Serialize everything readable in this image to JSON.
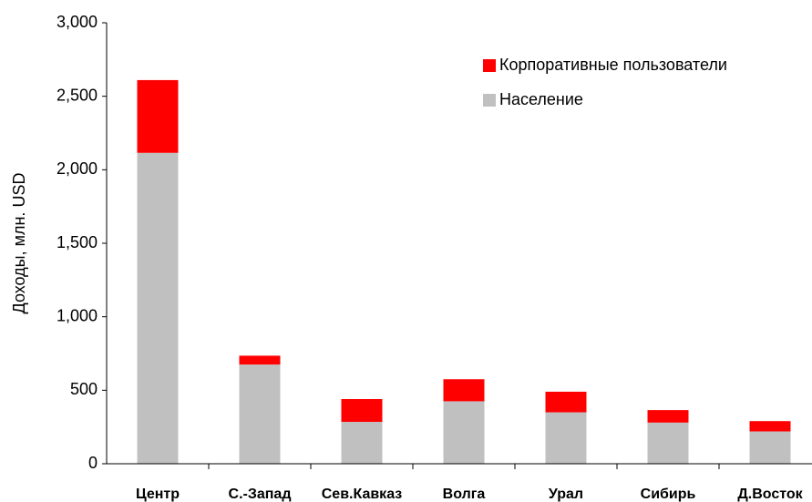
{
  "chart_data": {
    "type": "stacked_bar",
    "y_label": "Доходы, млн. USD",
    "categories": [
      "Центр",
      "С.-Запад",
      "Сев.Кавказ",
      "Волга",
      "Урал",
      "Сибирь",
      "Д.Восток"
    ],
    "series": [
      {
        "name": "Население",
        "color": "#c0c0c0",
        "values": [
          2115,
          675,
          285,
          425,
          350,
          280,
          220
        ]
      },
      {
        "name": "Корпоративные пользователи",
        "color": "#ff0000",
        "values": [
          495,
          60,
          155,
          150,
          140,
          85,
          70
        ]
      }
    ],
    "ylim": [
      0,
      3000
    ],
    "yticks": [
      0,
      500,
      {
        "value": 1000,
        "label": "1,000"
      },
      {
        "value": 1500,
        "label": "1,500"
      },
      {
        "value": 2000,
        "label": "2,000"
      },
      {
        "value": 2500,
        "label": "2,500"
      },
      {
        "value": 3000,
        "label": "3,000"
      }
    ],
    "legend": "upper right"
  }
}
